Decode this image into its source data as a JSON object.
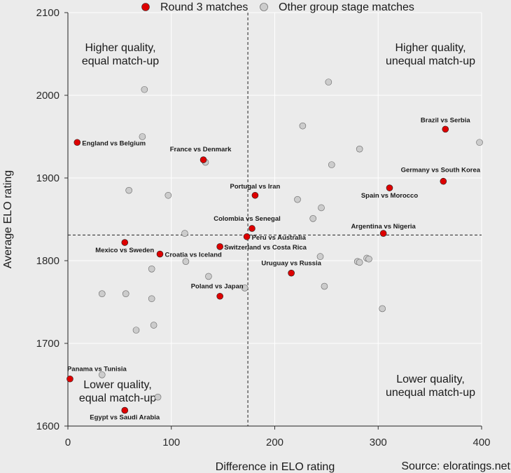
{
  "chart_data": {
    "type": "scatter",
    "xlabel": "Difference in ELO rating",
    "ylabel": "Average ELO rating",
    "xlim": [
      0,
      400
    ],
    "ylim": [
      1600,
      2100
    ],
    "x_ticks": [
      "0",
      "100",
      "200",
      "300",
      "400"
    ],
    "y_ticks": [
      "1600",
      "1700",
      "1800",
      "1900",
      "2000",
      "2100"
    ],
    "reference_lines": {
      "x": 174,
      "y": 1831
    },
    "legend": {
      "round3": "Round 3 matches",
      "other": "Other group stage matches",
      "round3_color": "#dd0000",
      "other_color": "#cccccc"
    },
    "quadrants": {
      "top_left": [
        "Higher quality,",
        "equal match-up"
      ],
      "top_right": [
        "Higher quality,",
        "unequal match-up"
      ],
      "bottom_left": [
        "Lower quality,",
        "equal match-up"
      ],
      "bottom_right": [
        "Lower quality,",
        "unequal match-up"
      ]
    },
    "source": "Source: eloratings.net",
    "series": [
      {
        "name": "Round 3 matches",
        "points": [
          {
            "label": "England vs Belgium",
            "x": 9,
            "y": 1943
          },
          {
            "label": "France vs Denmark",
            "x": 131,
            "y": 1922
          },
          {
            "label": "Brazil vs Serbia",
            "x": 365,
            "y": 1959
          },
          {
            "label": "Germany vs South Korea",
            "x": 363,
            "y": 1896
          },
          {
            "label": "Spain vs Morocco",
            "x": 311,
            "y": 1888
          },
          {
            "label": "Portugal vs Iran",
            "x": 181,
            "y": 1879
          },
          {
            "label": "Colombia vs Senegal",
            "x": 178,
            "y": 1839
          },
          {
            "label": "Peru vs Australia",
            "x": 173,
            "y": 1829
          },
          {
            "label": "Argentina vs Nigeria",
            "x": 305,
            "y": 1833
          },
          {
            "label": "Mexico vs Sweden",
            "x": 55,
            "y": 1822
          },
          {
            "label": "Switzerland vs Costa Rica",
            "x": 147,
            "y": 1817
          },
          {
            "label": "Croatia vs Iceland",
            "x": 89,
            "y": 1808
          },
          {
            "label": "Uruguay vs Russia",
            "x": 216,
            "y": 1785
          },
          {
            "label": "Poland vs Japan",
            "x": 147,
            "y": 1757
          },
          {
            "label": "Panama vs Tunisia",
            "x": 2,
            "y": 1657
          },
          {
            "label": "Egypt vs Saudi Arabia",
            "x": 55,
            "y": 1619
          }
        ]
      },
      {
        "name": "Other group stage matches",
        "points": [
          {
            "x": 74,
            "y": 2007
          },
          {
            "x": 252,
            "y": 2016
          },
          {
            "x": 227,
            "y": 1963
          },
          {
            "x": 72,
            "y": 1950
          },
          {
            "x": 398,
            "y": 1943
          },
          {
            "x": 282,
            "y": 1935
          },
          {
            "x": 133,
            "y": 1919
          },
          {
            "x": 255,
            "y": 1916
          },
          {
            "x": 59,
            "y": 1885
          },
          {
            "x": 97,
            "y": 1879
          },
          {
            "x": 222,
            "y": 1874
          },
          {
            "x": 245,
            "y": 1864
          },
          {
            "x": 237,
            "y": 1851
          },
          {
            "x": 113,
            "y": 1833
          },
          {
            "x": 244,
            "y": 1805
          },
          {
            "x": 289,
            "y": 1803
          },
          {
            "x": 291,
            "y": 1802
          },
          {
            "x": 280,
            "y": 1799
          },
          {
            "x": 282,
            "y": 1798
          },
          {
            "x": 114,
            "y": 1799
          },
          {
            "x": 81,
            "y": 1790
          },
          {
            "x": 136,
            "y": 1781
          },
          {
            "x": 248,
            "y": 1769
          },
          {
            "x": 171,
            "y": 1767
          },
          {
            "x": 33,
            "y": 1760
          },
          {
            "x": 56,
            "y": 1760
          },
          {
            "x": 81,
            "y": 1754
          },
          {
            "x": 304,
            "y": 1742
          },
          {
            "x": 83,
            "y": 1722
          },
          {
            "x": 66,
            "y": 1716
          },
          {
            "x": 33,
            "y": 1662
          },
          {
            "x": 87,
            "y": 1635
          }
        ]
      }
    ]
  }
}
